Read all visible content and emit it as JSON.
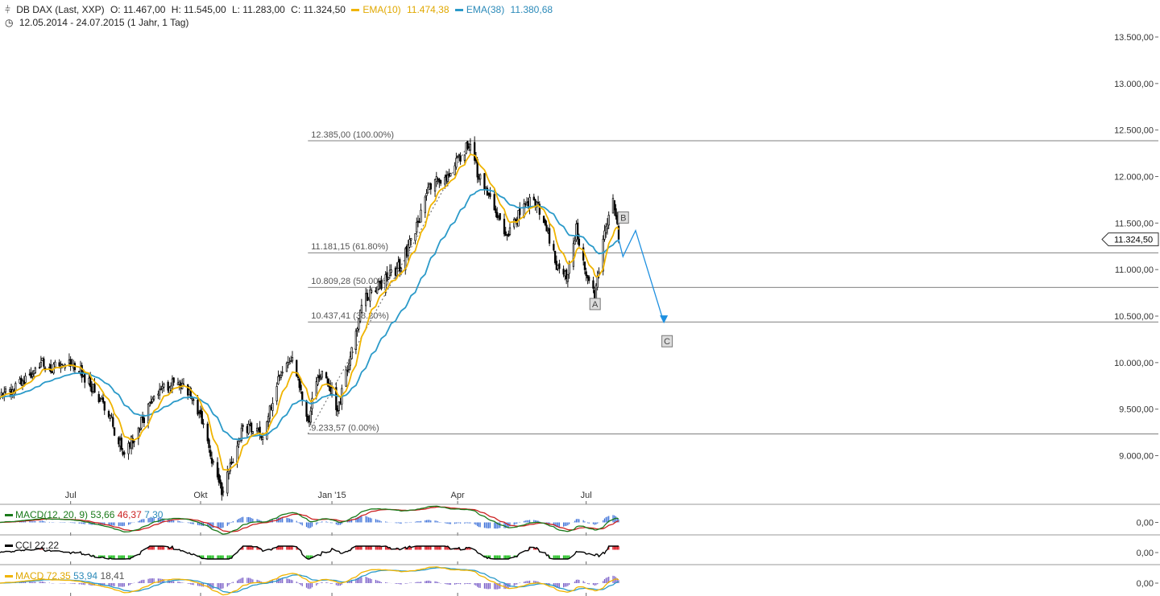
{
  "header": {
    "app_icon": "candlestick-icon",
    "title": "DB DAX (Last, XXP)",
    "open": "O: 11.467,00",
    "high": "H: 11.545,00",
    "low": "L: 11.283,00",
    "close": "C: 11.324,50",
    "ema10_label": "EMA(10)",
    "ema10_value": "11.474,38",
    "ema38_label": "EMA(38)",
    "ema38_value": "11.380,68",
    "clock_icon": "clock-icon",
    "period": "12.05.2014 - 24.07.2015 (1 Jahr, 1 Tag)"
  },
  "colors": {
    "candle": "#000000",
    "ema10": "#f0b400",
    "ema38": "#2b9ac9",
    "projection": "#1e90e0",
    "macd_line": "#1a7a1a",
    "macd_signal": "#cc2222",
    "macd_hist": "#3a6fd8",
    "cci_pos": "#e0202a",
    "cci_neg": "#22c022",
    "fib_line": "#555555",
    "grid_text": "#333333"
  },
  "chart_data": {
    "type": "candlestick",
    "title": "DB DAX (Last, XXP)",
    "date_range": "12.05.2014 - 24.07.2015",
    "ylim": [
      8650,
      13600
    ],
    "y_ticks": [
      "13.500,00",
      "13.000,00",
      "12.500,00",
      "12.000,00",
      "11.500,00",
      "11.000,00",
      "10.500,00",
      "10.000,00",
      "9.500,00",
      "9.000,00"
    ],
    "y_tick_values": [
      13500,
      13000,
      12500,
      12000,
      11500,
      11000,
      10500,
      10000,
      9500,
      9000
    ],
    "x_ticks": [
      {
        "label": "Jul",
        "date": "2014-07-01"
      },
      {
        "label": "Okt",
        "date": "2014-10-01"
      },
      {
        "label": "Jan '15",
        "date": "2015-01-02"
      },
      {
        "label": "Apr",
        "date": "2015-04-01"
      },
      {
        "label": "Jul",
        "date": "2015-07-01"
      }
    ],
    "start_date": "2014-05-12",
    "end_date": "2015-07-24",
    "last_price_label": "11.324,50",
    "last_price": 11324.5,
    "close_path": [
      {
        "date": "2014-05-12",
        "y": 9600
      },
      {
        "date": "2014-06-10",
        "y": 10000
      },
      {
        "date": "2014-06-20",
        "y": 9950
      },
      {
        "date": "2014-07-03",
        "y": 10000
      },
      {
        "date": "2014-07-15",
        "y": 9750
      },
      {
        "date": "2014-07-25",
        "y": 9550
      },
      {
        "date": "2014-08-08",
        "y": 9000
      },
      {
        "date": "2014-08-25",
        "y": 9500
      },
      {
        "date": "2014-09-05",
        "y": 9750
      },
      {
        "date": "2014-09-19",
        "y": 9800
      },
      {
        "date": "2014-10-01",
        "y": 9400
      },
      {
        "date": "2014-10-16",
        "y": 8600
      },
      {
        "date": "2014-10-31",
        "y": 9300
      },
      {
        "date": "2014-11-14",
        "y": 9250
      },
      {
        "date": "2014-11-28",
        "y": 9950
      },
      {
        "date": "2014-12-05",
        "y": 10050
      },
      {
        "date": "2014-12-16",
        "y": 9350
      },
      {
        "date": "2014-12-23",
        "y": 9900
      },
      {
        "date": "2014-12-30",
        "y": 9800
      },
      {
        "date": "2015-01-06",
        "y": 9500
      },
      {
        "date": "2015-01-15",
        "y": 10050
      },
      {
        "date": "2015-01-23",
        "y": 10650
      },
      {
        "date": "2015-02-06",
        "y": 10850
      },
      {
        "date": "2015-02-20",
        "y": 11050
      },
      {
        "date": "2015-03-02",
        "y": 11450
      },
      {
        "date": "2015-03-13",
        "y": 11900
      },
      {
        "date": "2015-03-23",
        "y": 12000
      },
      {
        "date": "2015-04-10",
        "y": 12375
      },
      {
        "date": "2015-04-16",
        "y": 11980
      },
      {
        "date": "2015-04-24",
        "y": 11800
      },
      {
        "date": "2015-05-06",
        "y": 11350
      },
      {
        "date": "2015-05-15",
        "y": 11600
      },
      {
        "date": "2015-05-25",
        "y": 11800
      },
      {
        "date": "2015-06-03",
        "y": 11400
      },
      {
        "date": "2015-06-10",
        "y": 11050
      },
      {
        "date": "2015-06-18",
        "y": 10950
      },
      {
        "date": "2015-06-24",
        "y": 11450
      },
      {
        "date": "2015-06-29",
        "y": 11080
      },
      {
        "date": "2015-07-07",
        "y": 10700
      },
      {
        "date": "2015-07-13",
        "y": 11300
      },
      {
        "date": "2015-07-20",
        "y": 11750
      },
      {
        "date": "2015-07-24",
        "y": 11324.5
      }
    ],
    "series": [
      {
        "name": "EMA(10)",
        "last": 11474.38
      },
      {
        "name": "EMA(38)",
        "last": 11380.68
      }
    ],
    "fib_levels": [
      {
        "label": "12.385,00 (100.00%)",
        "value": 12385
      },
      {
        "label": "11.181,15 (61.80%)",
        "value": 11181.15
      },
      {
        "label": "10.809,28 (50.00%)",
        "value": 10809.28
      },
      {
        "label": "10.437,41 (38.20%)",
        "value": 10437.41
      },
      {
        "label": "9.233,57 (0.00%)",
        "value": 9233.57
      }
    ],
    "fib_anchor_start": {
      "date": "2014-12-16",
      "value": 9233.57
    },
    "fib_anchor_end": {
      "date": "2015-04-10",
      "value": 12385
    },
    "wave_labels": [
      {
        "label": "A",
        "date": "2015-07-07",
        "value": 10630
      },
      {
        "label": "B",
        "date": "2015-07-27",
        "value": 11560
      },
      {
        "label": "C",
        "date": "2015-08-27",
        "value": 10230
      }
    ],
    "projection_path": [
      {
        "date": "2015-07-24",
        "value": 11324.5
      },
      {
        "date": "2015-07-27",
        "value": 11140
      },
      {
        "date": "2015-08-05",
        "value": 11420
      },
      {
        "date": "2015-08-25",
        "value": 10430
      }
    ],
    "indicators": [
      {
        "name": "MACD(12, 20, 9)",
        "values": [
          "53,66",
          "46,37",
          "7,30"
        ],
        "zero_label": "0,00"
      },
      {
        "name": "CCI",
        "values": [
          "22,22"
        ],
        "zero_label": "0,00"
      },
      {
        "name": "MACD",
        "values": [
          "72,35",
          "53,94",
          "18,41"
        ],
        "zero_label": "0,00"
      }
    ]
  }
}
